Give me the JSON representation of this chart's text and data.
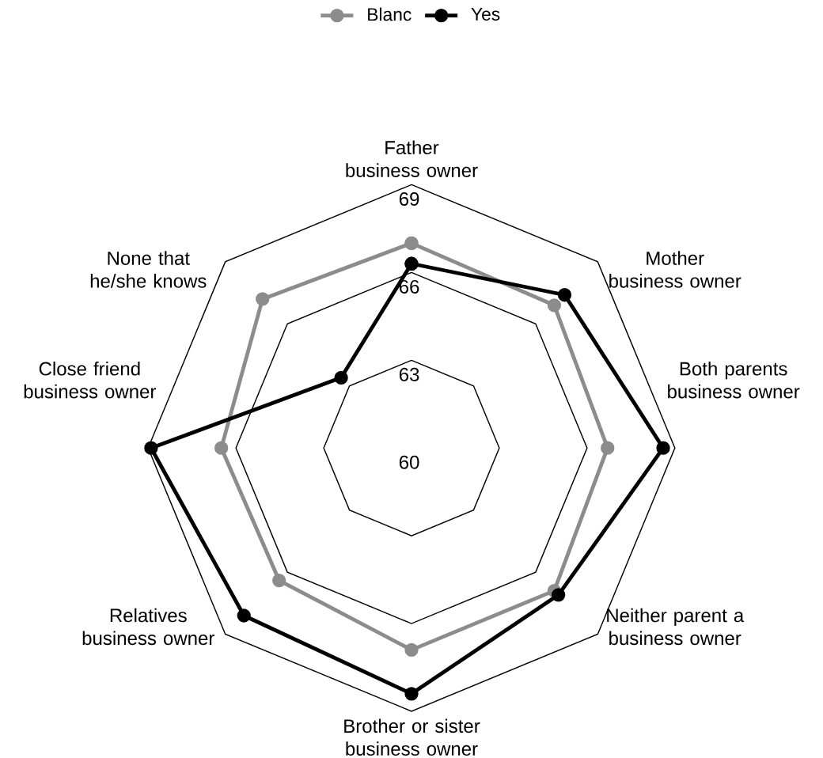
{
  "chart_data": {
    "type": "radar",
    "categories": [
      "Father business owner",
      "Mother business owner",
      "Both parents business owner",
      "Neither parent a business owner",
      "Brother or sister business owner",
      "Relatives business owner",
      "Close friend business owner",
      "None that he/she knows"
    ],
    "series": [
      {
        "name": "Blanc",
        "color": "#8c8c8c",
        "values": [
          67.0,
          66.9,
          66.7,
          66.9,
          66.9,
          66.4,
          66.5,
          67.2
        ]
      },
      {
        "name": "Yes",
        "color": "#000000",
        "values": [
          66.3,
          67.4,
          68.6,
          67.1,
          68.4,
          68.1,
          68.9,
          63.4
        ]
      }
    ],
    "ylim": [
      60,
      69
    ],
    "yticks": [
      60,
      63,
      66,
      69
    ],
    "grid": true,
    "legend": "top",
    "marker": "circle"
  }
}
